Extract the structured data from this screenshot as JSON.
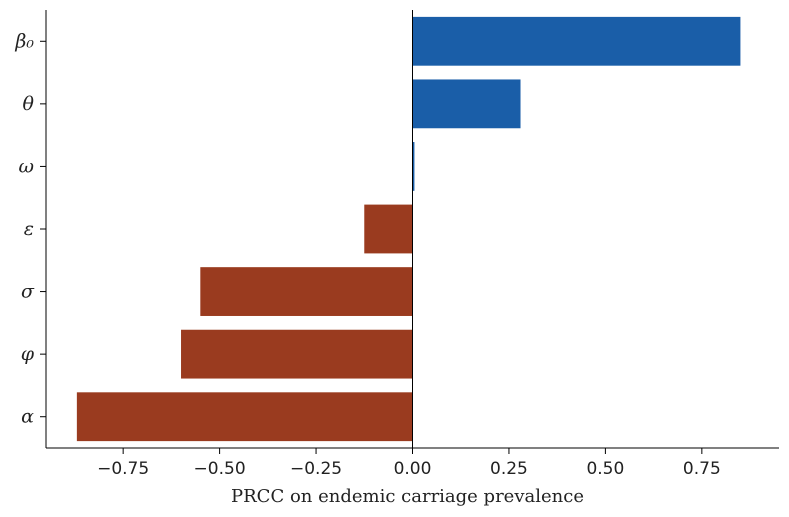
{
  "chart_data": {
    "type": "bar",
    "orientation": "horizontal",
    "title": "",
    "xlabel": "PRCC on endemic carriage prevalence",
    "ylabel": "",
    "categories": [
      "β₀",
      "θ",
      "ω",
      "ε",
      "σ",
      "φ",
      "α"
    ],
    "values": [
      0.85,
      0.28,
      0.005,
      -0.125,
      -0.55,
      -0.6,
      -0.87
    ],
    "xlim": [
      -0.95,
      0.95
    ],
    "xticks": [
      -0.75,
      -0.5,
      -0.25,
      0.0,
      0.25,
      0.5,
      0.75
    ],
    "xtick_labels": [
      "−0.75",
      "−0.50",
      "−0.25",
      "0.00",
      "0.25",
      "0.50",
      "0.75"
    ],
    "grid": false,
    "colors": {
      "positive": "#1a5ea8",
      "negative": "#9a3b1f"
    }
  }
}
